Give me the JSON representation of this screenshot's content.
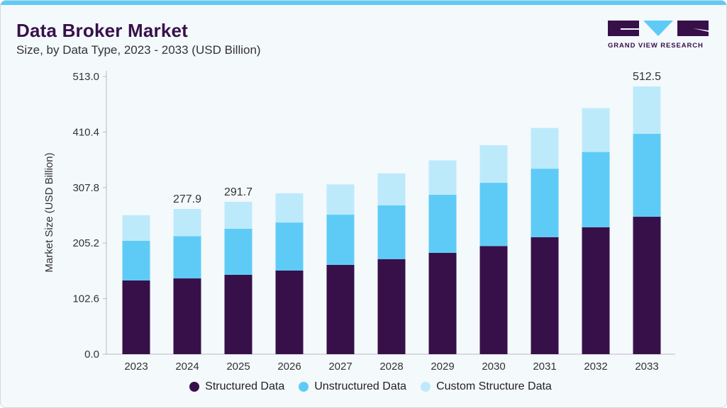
{
  "header": {
    "title": "Data Broker Market",
    "subtitle": "Size, by Data Type, 2023 - 2033 (USD Billion)"
  },
  "logo": {
    "text": "GRAND VIEW RESEARCH"
  },
  "colors": {
    "structured": "#37104a",
    "unstructured": "#5ecbf7",
    "custom": "#bdeafb",
    "accent": "#5ecbf7"
  },
  "chart_data": {
    "type": "bar",
    "stacked": true,
    "title": "Data Broker Market",
    "subtitle": "Size, by Data Type, 2023 - 2033 (USD Billion)",
    "xlabel": "",
    "ylabel": "Market Size (USD Billion)",
    "ylim": [
      0,
      513
    ],
    "yticks": [
      "0.0",
      "102.6",
      "205.2",
      "307.8",
      "410.4",
      "513.0"
    ],
    "grid": false,
    "legend_position": "bottom",
    "categories": [
      "2023",
      "2024",
      "2025",
      "2026",
      "2027",
      "2028",
      "2029",
      "2030",
      "2031",
      "2032",
      "2033"
    ],
    "series": [
      {
        "name": "Structured Data",
        "values": [
          141,
          145,
          152,
          160,
          171,
          182,
          194,
          207,
          224,
          243,
          263
        ]
      },
      {
        "name": "Unstructured Data",
        "values": [
          76,
          81,
          88,
          92,
          96,
          103,
          111,
          121,
          131,
          144,
          159
        ]
      },
      {
        "name": "Custom Structure Data",
        "values": [
          49,
          51.9,
          51.7,
          56,
          58,
          61,
          66,
          72,
          78,
          84,
          90.5
        ]
      }
    ],
    "data_labels": {
      "2024": "277.9",
      "2025": "291.7",
      "2033": "512.5"
    }
  }
}
